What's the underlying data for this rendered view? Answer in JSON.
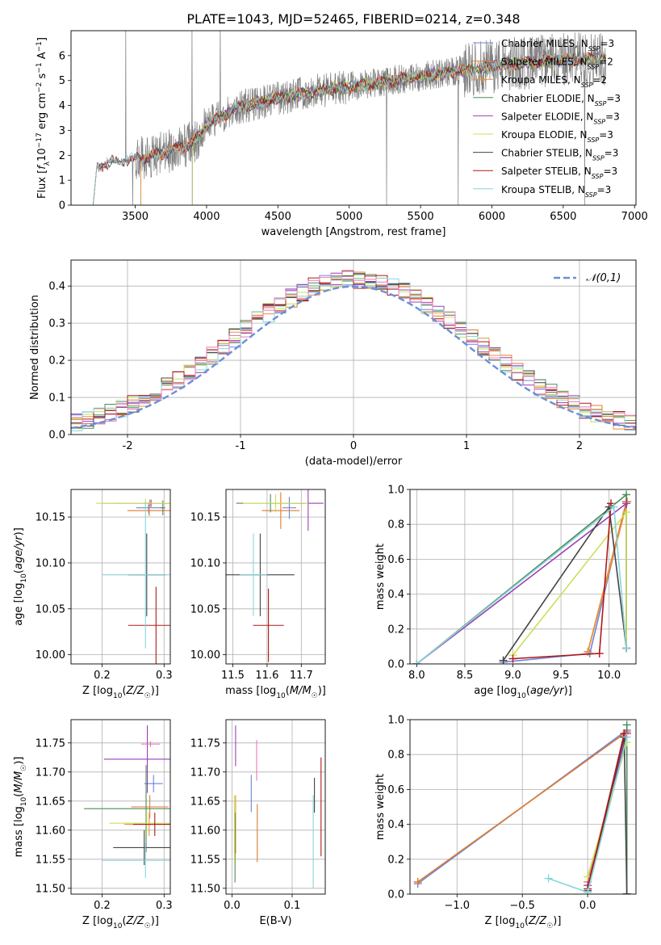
{
  "figure": {
    "title": "PLATE=1043, MJD=52465, FIBERID=0214, z=0.348"
  },
  "colors": {
    "Chabrier MILES": "#6a86db",
    "Salpeter MILES": "#e07b2e",
    "Kroupa MILES": "#e8903a",
    "Chabrier ELODIE": "#4d8a5a",
    "Salpeter ELODIE": "#9b3fb8",
    "Kroupa ELODIE": "#c9e05a",
    "Chabrier STELIB": "#444444",
    "Salpeter STELIB": "#b01818",
    "Kroupa STELIB": "#88d5d8",
    "data": "#7f7f7f",
    "gaussian": "#6a8fd8",
    "extra_pink": "#e878b8"
  },
  "legend_labels": [
    {
      "name": "Chabrier MILES",
      "label": "Chabrier MILES, N",
      "sub": "SSP",
      "tail": "=3"
    },
    {
      "name": "Salpeter MILES",
      "label": "Salpeter MILES, N",
      "sub": "SSP",
      "tail": "=2"
    },
    {
      "name": "Kroupa MILES",
      "label": "Kroupa MILES, N",
      "sub": "SSP",
      "tail": "=2"
    },
    {
      "name": "Chabrier ELODIE",
      "label": "Chabrier ELODIE, N",
      "sub": "SSP",
      "tail": "=3"
    },
    {
      "name": "Salpeter ELODIE",
      "label": "Salpeter ELODIE, N",
      "sub": "SSP",
      "tail": "=3"
    },
    {
      "name": "Kroupa ELODIE",
      "label": "Kroupa ELODIE, N",
      "sub": "SSP",
      "tail": "=3"
    },
    {
      "name": "Chabrier STELIB",
      "label": "Chabrier STELIB, N",
      "sub": "SSP",
      "tail": "=3"
    },
    {
      "name": "Salpeter STELIB",
      "label": "Salpeter STELIB, N",
      "sub": "SSP",
      "tail": "=3"
    },
    {
      "name": "Kroupa STELIB",
      "label": "Kroupa STELIB, N",
      "sub": "SSP",
      "tail": "=3"
    }
  ],
  "chart_data": [
    {
      "id": "spectrum",
      "type": "line",
      "title": "PLATE=1043, MJD=52465, FIBERID=0214, z=0.348",
      "xlabel": "wavelength [Angstrom, rest frame]",
      "ylabel": "Flux [f_λ 10^-17 erg cm^-2 s^-1 A^-1]",
      "xlim": [
        3050,
        7010
      ],
      "ylim": [
        0,
        7
      ],
      "xticks": [
        3500,
        4000,
        4500,
        5000,
        5500,
        6000,
        6500,
        7000
      ],
      "yticks": [
        0,
        1,
        2,
        3,
        4,
        5,
        6
      ],
      "spectrum_start": 3205,
      "spectrum_end": 6800,
      "continuum_knots": {
        "x": [
          3205,
          3230,
          3300,
          3500,
          3700,
          3900,
          4000,
          4200,
          4500,
          4800,
          5000,
          5300,
          5600,
          5900,
          6200,
          6500,
          6800
        ],
        "y": [
          0,
          1.5,
          1.7,
          1.85,
          2.1,
          2.5,
          3.2,
          3.9,
          4.3,
          4.6,
          4.75,
          5.0,
          5.25,
          5.5,
          5.7,
          5.85,
          5.9
        ]
      },
      "model_starts": {
        "Chabrier MILES": 3540,
        "Salpeter MILES": 3540,
        "Kroupa MILES": 3540,
        "Chabrier ELODIE": 3900,
        "Salpeter ELODIE": 3900,
        "Kroupa ELODIE": 3900,
        "Chabrier STELIB": 3205,
        "Salpeter STELIB": 3205,
        "Kroupa STELIB": 3205
      },
      "grid": false
    },
    {
      "id": "residuals",
      "type": "histogram",
      "xlabel": "(data-model)/error",
      "ylabel": "Normed distribution",
      "xlim": [
        -2.5,
        2.5
      ],
      "ylim": [
        0,
        0.47
      ],
      "xticks": [
        -2,
        -1,
        0,
        1,
        2
      ],
      "yticks": [
        0.0,
        0.1,
        0.2,
        0.3,
        0.4
      ],
      "legend": "𝒩(0,1)",
      "legend_position": "top-right",
      "grid": true,
      "bin_width": 0.1
    },
    {
      "id": "age_vs_Z",
      "type": "errorbar",
      "xlabel": "Z [log10(Z/Z☉)]",
      "ylabel": "age [log10(age/yr)]",
      "xlim": [
        0.15,
        0.31
      ],
      "ylim": [
        9.99,
        10.18
      ],
      "xticks": [
        0.2,
        0.3
      ],
      "yticks": [
        10.0,
        10.05,
        10.1,
        10.15
      ],
      "grid": true,
      "points": [
        {
          "series": "Chabrier MILES",
          "x": 0.275,
          "y": 10.16,
          "xerr": 0.02,
          "yerr": 0.006
        },
        {
          "series": "Salpeter MILES",
          "x": 0.276,
          "y": 10.157,
          "xerr": 0.035,
          "yerr": 0.006
        },
        {
          "series": "Kroupa MILES",
          "x": 0.277,
          "y": 10.165,
          "xerr": 0.055,
          "yerr": 0.004
        },
        {
          "series": "Chabrier ELODIE",
          "x": 0.298,
          "y": 10.16,
          "xerr": 0.004,
          "yerr": 0.008
        },
        {
          "series": "Salpeter ELODIE",
          "x": 0.279,
          "y": 10.165,
          "xerr": 0.08,
          "yerr": 0.004
        },
        {
          "series": "Kroupa ELODIE",
          "x": 0.27,
          "y": 10.165,
          "xerr": 0.08,
          "yerr": 0.005
        },
        {
          "series": "Chabrier STELIB",
          "x": 0.272,
          "y": 10.087,
          "xerr": 0.03,
          "yerr": 0.045
        },
        {
          "series": "Salpeter STELIB",
          "x": 0.287,
          "y": 10.032,
          "xerr": 0.045,
          "yerr": 0.042
        },
        {
          "series": "Kroupa STELIB",
          "x": 0.27,
          "y": 10.087,
          "xerr": 0.07,
          "yerr": 0.08
        }
      ]
    },
    {
      "id": "age_vs_mass",
      "type": "errorbar",
      "xlabel": "mass [log10(M/M☉)]",
      "ylabel": "",
      "xlim": [
        11.48,
        11.77
      ],
      "ylim": [
        9.99,
        10.18
      ],
      "xticks": [
        11.5,
        11.6,
        11.7
      ],
      "yticks": [
        10.0,
        10.05,
        10.1,
        10.15
      ],
      "grid": true,
      "points": [
        {
          "series": "Chabrier MILES",
          "x": 11.665,
          "y": 10.16,
          "xerr": 0.02,
          "yerr": 0.012
        },
        {
          "series": "Salpeter MILES",
          "x": 11.64,
          "y": 10.157,
          "xerr": 0.055,
          "yerr": 0.02
        },
        {
          "series": "Kroupa MILES",
          "x": 11.64,
          "y": 10.165,
          "xerr": 0.04,
          "yerr": 0.008
        },
        {
          "series": "Chabrier ELODIE",
          "x": 11.61,
          "y": 10.165,
          "xerr": 0.1,
          "yerr": 0.01
        },
        {
          "series": "Salpeter ELODIE",
          "x": 11.72,
          "y": 10.165,
          "xerr": 0.045,
          "yerr": 0.03
        },
        {
          "series": "Kroupa ELODIE",
          "x": 11.625,
          "y": 10.165,
          "xerr": 0.095,
          "yerr": 0.01
        },
        {
          "series": "Chabrier STELIB",
          "x": 11.58,
          "y": 10.087,
          "xerr": 0.1,
          "yerr": 0.045
        },
        {
          "series": "Salpeter STELIB",
          "x": 11.604,
          "y": 10.032,
          "xerr": 0.045,
          "yerr": 0.04
        },
        {
          "series": "Kroupa STELIB",
          "x": 11.56,
          "y": 10.087,
          "xerr": 0.04,
          "yerr": 0.045
        }
      ]
    },
    {
      "id": "massweight_vs_age",
      "type": "line",
      "xlabel": "age [log10(age/yr)]",
      "ylabel": "mass weight",
      "xlim": [
        7.93,
        10.28
      ],
      "ylim": [
        0,
        1.0
      ],
      "xticks": [
        8.0,
        8.5,
        9.0,
        9.5,
        10.0
      ],
      "yticks": [
        0.0,
        0.2,
        0.4,
        0.6,
        0.8,
        1.0
      ],
      "grid": true,
      "series": [
        {
          "name": "Chabrier MILES",
          "x": [
            8.9,
            9.8,
            10.18
          ],
          "y": [
            0.01,
            0.06,
            0.93
          ]
        },
        {
          "name": "Salpeter MILES",
          "x": [
            9.78,
            10.18
          ],
          "y": [
            0.07,
            0.93
          ]
        },
        {
          "name": "Kroupa MILES",
          "x": [
            9.78,
            10.19
          ],
          "y": [
            0.07,
            0.93
          ]
        },
        {
          "name": "Chabrier ELODIE",
          "x": [
            8.0,
            10.18,
            10.18
          ],
          "y": [
            0.0,
            0.97,
            0.09
          ]
        },
        {
          "name": "Salpeter ELODIE",
          "x": [
            8.0,
            10.18,
            10.18
          ],
          "y": [
            0.0,
            0.92,
            0.09
          ]
        },
        {
          "name": "Kroupa ELODIE",
          "x": [
            9.0,
            10.18,
            10.18
          ],
          "y": [
            0.05,
            0.87,
            0.09
          ]
        },
        {
          "name": "Chabrier STELIB",
          "x": [
            8.9,
            10.0,
            10.18
          ],
          "y": [
            0.02,
            0.9,
            0.09
          ]
        },
        {
          "name": "Salpeter STELIB",
          "x": [
            9.0,
            9.9,
            10.02
          ],
          "y": [
            0.03,
            0.06,
            0.92
          ]
        },
        {
          "name": "Kroupa STELIB",
          "x": [
            8.0,
            10.05,
            10.18
          ],
          "y": [
            0.0,
            0.9,
            0.09
          ]
        }
      ]
    },
    {
      "id": "mass_vs_Z",
      "type": "errorbar",
      "xlabel": "Z [log10(Z/Z☉)]",
      "ylabel": "mass [log10(M/M☉)]",
      "xlim": [
        0.15,
        0.31
      ],
      "ylim": [
        11.49,
        11.79
      ],
      "xticks": [
        0.2,
        0.3
      ],
      "yticks": [
        11.5,
        11.55,
        11.6,
        11.65,
        11.7,
        11.75
      ],
      "grid": true,
      "points": [
        {
          "series": "Chabrier MILES",
          "x": 0.283,
          "y": 11.68,
          "xerr": 0.015,
          "yerr": 0.015
        },
        {
          "series": "Salpeter MILES",
          "x": 0.277,
          "y": 11.64,
          "xerr": 0.03,
          "yerr": 0.02
        },
        {
          "series": "Kroupa MILES",
          "x": 0.276,
          "y": 11.61,
          "xerr": 0.04,
          "yerr": 0.02
        },
        {
          "series": "Chabrier ELODIE",
          "x": 0.271,
          "y": 11.637,
          "xerr": 0.1,
          "yerr": 0.075
        },
        {
          "series": "Salpeter ELODIE",
          "x": 0.273,
          "y": 11.722,
          "xerr": 0.07,
          "yerr": 0.058
        },
        {
          "series": "Kroupa ELODIE",
          "x": 0.272,
          "y": 11.612,
          "xerr": 0.06,
          "yerr": 0.02
        },
        {
          "series": "Chabrier STELIB",
          "x": 0.268,
          "y": 11.57,
          "xerr": 0.05,
          "yerr": 0.03
        },
        {
          "series": "Salpeter STELIB",
          "x": 0.285,
          "y": 11.61,
          "xerr": 0.035,
          "yerr": 0.02
        },
        {
          "series": "Kroupa STELIB",
          "x": 0.27,
          "y": 11.548,
          "xerr": 0.07,
          "yerr": 0.03
        },
        {
          "series": "extra_pink",
          "x": 0.278,
          "y": 11.748,
          "xerr": 0.015,
          "yerr": 0.005
        }
      ]
    },
    {
      "id": "mass_vs_ebv",
      "type": "errorbar",
      "xlabel": "E(B-V)",
      "ylabel": "",
      "xlim": [
        -0.01,
        0.155
      ],
      "ylim": [
        11.49,
        11.79
      ],
      "xticks": [
        0.0,
        0.1
      ],
      "yticks": [
        11.5,
        11.55,
        11.6,
        11.65,
        11.7,
        11.75
      ],
      "grid": true,
      "points": [
        {
          "series": "Chabrier MILES",
          "x": 0.032,
          "y": 11.663,
          "yerr": 0.032
        },
        {
          "series": "Salpeter MILES",
          "x": 0.042,
          "y": 11.595,
          "yerr": 0.05
        },
        {
          "series": "Kroupa MILES",
          "x": 0.006,
          "y": 11.61,
          "yerr": 0.05
        },
        {
          "series": "Chabrier ELODIE",
          "x": 0.005,
          "y": 11.57,
          "yerr": 0.06
        },
        {
          "series": "Salpeter ELODIE",
          "x": 0.006,
          "y": 11.745,
          "yerr": 0.035
        },
        {
          "series": "Kroupa ELODIE",
          "x": 0.004,
          "y": 11.6,
          "yerr": 0.06
        },
        {
          "series": "Chabrier STELIB",
          "x": 0.137,
          "y": 11.66,
          "yerr": 0.03
        },
        {
          "series": "Salpeter STELIB",
          "x": 0.148,
          "y": 11.64,
          "yerr": 0.085
        },
        {
          "series": "Kroupa STELIB",
          "x": 0.135,
          "y": 11.58,
          "yerr": 0.08
        },
        {
          "series": "extra_pink",
          "x": 0.041,
          "y": 11.72,
          "yerr": 0.035
        }
      ]
    },
    {
      "id": "massweight_vs_Z",
      "type": "line",
      "xlabel": "Z [log10(Z/Z☉)]",
      "ylabel": "mass weight",
      "xlim": [
        -1.36,
        0.37
      ],
      "ylim": [
        0,
        1.0
      ],
      "xticks": [
        -1.0,
        -0.5,
        0.0
      ],
      "yticks": [
        0.0,
        0.2,
        0.4,
        0.6,
        0.8,
        1.0
      ],
      "grid": true,
      "series": [
        {
          "name": "Chabrier MILES",
          "x": [
            -1.3,
            0.3
          ],
          "y": [
            0.06,
            0.94
          ]
        },
        {
          "name": "Salpeter MILES",
          "x": [
            -1.3,
            0.3
          ],
          "y": [
            0.07,
            0.93
          ]
        },
        {
          "name": "Kroupa MILES",
          "x": [
            0.0,
            0.3
          ],
          "y": [
            0.07,
            0.93
          ]
        },
        {
          "name": "Chabrier ELODIE",
          "x": [
            0.3,
            0.3,
            0.3
          ],
          "y": [
            0.0,
            0.97,
            0.0
          ]
        },
        {
          "name": "Salpeter ELODIE",
          "x": [
            0.0,
            0.3
          ],
          "y": [
            0.05,
            0.92
          ]
        },
        {
          "name": "Kroupa ELODIE",
          "x": [
            0.0,
            0.3
          ],
          "y": [
            0.1,
            0.87
          ]
        },
        {
          "name": "Chabrier STELIB",
          "x": [
            0.0,
            0.28,
            0.3
          ],
          "y": [
            0.02,
            0.9,
            0.0
          ]
        },
        {
          "name": "Salpeter STELIB",
          "x": [
            0.0,
            0.28
          ],
          "y": [
            0.03,
            0.92
          ]
        },
        {
          "name": "Kroupa STELIB",
          "x": [
            -0.3,
            0.0,
            0.3
          ],
          "y": [
            0.09,
            0.01,
            0.9
          ]
        }
      ]
    }
  ]
}
